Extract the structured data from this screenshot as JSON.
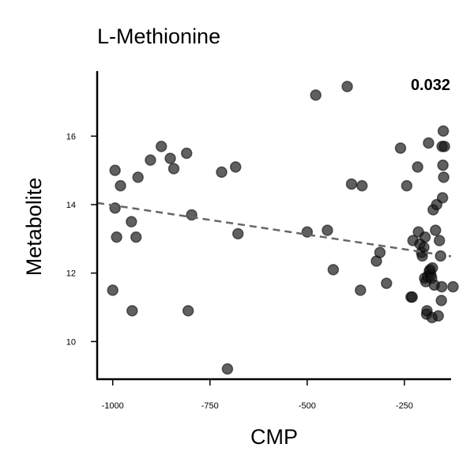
{
  "chart_data": {
    "type": "scatter",
    "title": "L-Methionine",
    "xlabel": "CMP",
    "ylabel": "Metabolite",
    "annotation": "0.032",
    "xlim": [
      -1040,
      -130
    ],
    "ylim": [
      8.9,
      17.9
    ],
    "xticks": [
      -1000,
      -750,
      -500,
      -250
    ],
    "xtick_labels": [
      "-1000",
      "-750",
      "-500",
      "-250"
    ],
    "yticks": [
      10,
      12,
      14,
      16
    ],
    "ytick_labels": [
      "10",
      "12",
      "14",
      "16"
    ],
    "grid": false,
    "trend_line": {
      "x": [
        -1040,
        -130
      ],
      "y": [
        14.05,
        12.49
      ]
    },
    "points": [
      {
        "x": -1000,
        "y": 11.5
      },
      {
        "x": -994,
        "y": 15.0
      },
      {
        "x": -994,
        "y": 13.9
      },
      {
        "x": -990,
        "y": 13.05
      },
      {
        "x": -980,
        "y": 14.55
      },
      {
        "x": -952,
        "y": 13.5
      },
      {
        "x": -950,
        "y": 10.9
      },
      {
        "x": -940,
        "y": 13.05
      },
      {
        "x": -935,
        "y": 14.8
      },
      {
        "x": -903,
        "y": 15.3
      },
      {
        "x": -875,
        "y": 15.7
      },
      {
        "x": -852,
        "y": 15.35
      },
      {
        "x": -843,
        "y": 15.05
      },
      {
        "x": -810,
        "y": 15.5
      },
      {
        "x": -806,
        "y": 10.9
      },
      {
        "x": -797,
        "y": 13.7
      },
      {
        "x": -720,
        "y": 14.95
      },
      {
        "x": -705,
        "y": 9.2
      },
      {
        "x": -684,
        "y": 15.1
      },
      {
        "x": -678,
        "y": 13.15
      },
      {
        "x": -500,
        "y": 13.2
      },
      {
        "x": -478,
        "y": 17.2
      },
      {
        "x": -448,
        "y": 13.25
      },
      {
        "x": -433,
        "y": 12.1
      },
      {
        "x": -397,
        "y": 17.45
      },
      {
        "x": -386,
        "y": 14.6
      },
      {
        "x": -363,
        "y": 11.5
      },
      {
        "x": -359,
        "y": 14.55
      },
      {
        "x": -322,
        "y": 12.35
      },
      {
        "x": -313,
        "y": 12.6
      },
      {
        "x": -296,
        "y": 11.7
      },
      {
        "x": -260,
        "y": 15.65
      },
      {
        "x": -244,
        "y": 14.55
      },
      {
        "x": -233,
        "y": 11.3
      },
      {
        "x": -230,
        "y": 11.3
      },
      {
        "x": -228,
        "y": 12.95
      },
      {
        "x": -216,
        "y": 15.1
      },
      {
        "x": -214,
        "y": 13.2
      },
      {
        "x": -210,
        "y": 12.85
      },
      {
        "x": -206,
        "y": 12.6
      },
      {
        "x": -204,
        "y": 12.5
      },
      {
        "x": -200,
        "y": 12.75
      },
      {
        "x": -198,
        "y": 11.85
      },
      {
        "x": -197,
        "y": 13.05
      },
      {
        "x": -195,
        "y": 11.75
      },
      {
        "x": -193,
        "y": 10.8
      },
      {
        "x": -192,
        "y": 10.9
      },
      {
        "x": -190,
        "y": 11.9
      },
      {
        "x": -188,
        "y": 15.8
      },
      {
        "x": -186,
        "y": 12.05
      },
      {
        "x": -184,
        "y": 12.1
      },
      {
        "x": -182,
        "y": 11.95
      },
      {
        "x": -180,
        "y": 11.85
      },
      {
        "x": -179,
        "y": 10.7
      },
      {
        "x": -178,
        "y": 12.15
      },
      {
        "x": -176,
        "y": 13.85
      },
      {
        "x": -173,
        "y": 11.65
      },
      {
        "x": -170,
        "y": 13.25
      },
      {
        "x": -167,
        "y": 14.0
      },
      {
        "x": -163,
        "y": 10.75
      },
      {
        "x": -160,
        "y": 12.95
      },
      {
        "x": -157,
        "y": 12.5
      },
      {
        "x": -155,
        "y": 11.2
      },
      {
        "x": -154,
        "y": 11.6
      },
      {
        "x": -153,
        "y": 15.7
      },
      {
        "x": -152,
        "y": 14.2
      },
      {
        "x": -151,
        "y": 15.15
      },
      {
        "x": -150,
        "y": 16.15
      },
      {
        "x": -149,
        "y": 14.8
      },
      {
        "x": -147,
        "y": 15.7
      },
      {
        "x": -125,
        "y": 11.6
      }
    ]
  }
}
